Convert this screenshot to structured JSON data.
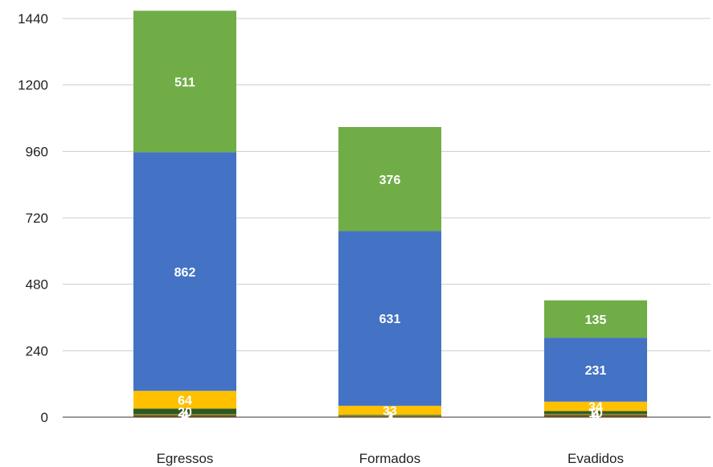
{
  "chart_data": {
    "type": "bar",
    "stacked": true,
    "categories": [
      "Egressos",
      "Formados",
      "Evadidos"
    ],
    "series": [
      {
        "values": [
          7,
          3,
          8
        ],
        "color": "#6b4e1e"
      },
      {
        "values": [
          4,
          2,
          4
        ],
        "color": "#8b8b2a"
      },
      {
        "values": [
          20,
          3,
          10
        ],
        "color": "#2d5a23"
      },
      {
        "values": [
          64,
          33,
          34
        ],
        "color": "#ffc000"
      },
      {
        "values": [
          862,
          631,
          231
        ],
        "color": "#4472c4"
      },
      {
        "values": [
          511,
          376,
          135
        ],
        "color": "#70ad47"
      }
    ],
    "data_labels": [
      {
        "category": "Egressos",
        "text": "511"
      },
      {
        "category": "Egressos",
        "text": "862"
      },
      {
        "category": "Egressos",
        "text": "64"
      },
      {
        "category": "Egressos",
        "text": "20"
      },
      {
        "category": "Egressos",
        "text": "4"
      },
      {
        "category": "Egressos",
        "text": "7"
      },
      {
        "category": "Formados",
        "text": "376"
      },
      {
        "category": "Formados",
        "text": "631"
      },
      {
        "category": "Formados",
        "text": "33"
      },
      {
        "category": "Formados",
        "text": "3"
      },
      {
        "category": "Formados",
        "text": "2"
      },
      {
        "category": "Formados",
        "text": "3"
      },
      {
        "category": "Evadidos",
        "text": "135"
      },
      {
        "category": "Evadidos",
        "text": "231"
      },
      {
        "category": "Evadidos",
        "text": "34"
      },
      {
        "category": "Evadidos",
        "text": "10"
      },
      {
        "category": "Evadidos",
        "text": "4"
      },
      {
        "category": "Evadidos",
        "text": "8"
      }
    ],
    "y_ticks": [
      "0",
      "240",
      "480",
      "720",
      "960",
      "1200",
      "1440"
    ],
    "ylim": [
      0,
      1440
    ],
    "grid": true,
    "title": "",
    "xlabel": "",
    "ylabel": ""
  }
}
